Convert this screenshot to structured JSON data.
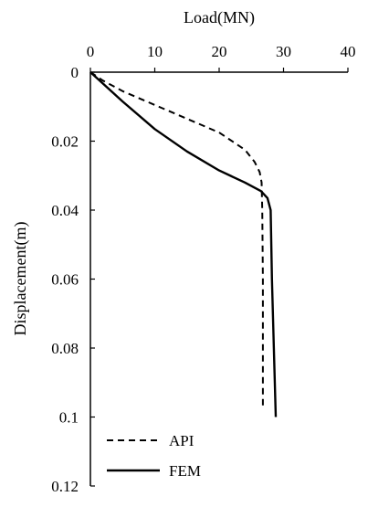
{
  "chart_data": {
    "type": "line",
    "title": "",
    "xlabel": "Load(MN)",
    "ylabel": "Displacement(m)",
    "x_axis_position": "top",
    "y_axis_inverted": true,
    "xlim": [
      0,
      40
    ],
    "ylim": [
      0,
      0.12
    ],
    "x_ticks": [
      "0",
      "10",
      "20",
      "30",
      "40"
    ],
    "y_ticks": [
      "0",
      "0.02",
      "0.04",
      "0.06",
      "0.08",
      "0.1",
      "0.12"
    ],
    "grid": false,
    "legend_position": "bottom-left",
    "series": [
      {
        "name": "API",
        "style": "dashed",
        "color": "#000000",
        "points": [
          [
            0,
            0
          ],
          [
            2,
            0.0025
          ],
          [
            5,
            0.0055
          ],
          [
            10,
            0.0095
          ],
          [
            15,
            0.0135
          ],
          [
            20,
            0.0175
          ],
          [
            24,
            0.0225
          ],
          [
            25.5,
            0.026
          ],
          [
            26.3,
            0.029
          ],
          [
            26.6,
            0.032
          ],
          [
            26.7,
            0.04
          ],
          [
            26.8,
            0.06
          ],
          [
            26.8,
            0.08
          ],
          [
            26.8,
            0.097
          ]
        ]
      },
      {
        "name": "FEM",
        "style": "solid",
        "color": "#000000",
        "points": [
          [
            0,
            0
          ],
          [
            5,
            0.0085
          ],
          [
            10,
            0.0165
          ],
          [
            15,
            0.023
          ],
          [
            20,
            0.0285
          ],
          [
            24,
            0.032
          ],
          [
            26.5,
            0.0345
          ],
          [
            27.5,
            0.0365
          ],
          [
            28,
            0.04
          ],
          [
            28.2,
            0.06
          ],
          [
            28.5,
            0.08
          ],
          [
            28.8,
            0.1
          ]
        ]
      }
    ]
  }
}
